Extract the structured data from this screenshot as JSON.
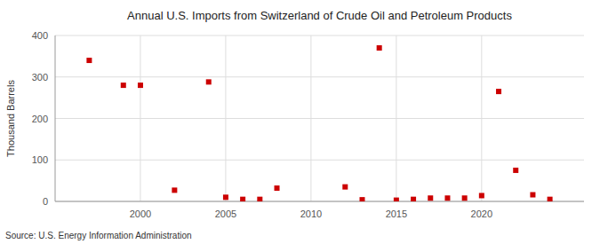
{
  "chart_data": {
    "type": "scatter",
    "title": "Annual U.S. Imports from Switzerland of Crude Oil and Petroleum Products",
    "ylabel": "Thousand Barrels",
    "source": "Source: U.S. Energy Information Administration",
    "x": [
      1997,
      1999,
      2000,
      2002,
      2004,
      2005,
      2006,
      2007,
      2008,
      2012,
      2013,
      2014,
      2015,
      2016,
      2017,
      2018,
      2019,
      2020,
      2021,
      2022,
      2023,
      2024
    ],
    "values": [
      340,
      280,
      280,
      27,
      288,
      10,
      5,
      5,
      32,
      35,
      4,
      370,
      3,
      5,
      8,
      8,
      8,
      14,
      265,
      75,
      16,
      5
    ],
    "color": "#cc0000",
    "marker": "square",
    "xlim": [
      1995,
      2026
    ],
    "ylim": [
      0,
      400
    ],
    "xticks": [
      2000,
      2005,
      2010,
      2015,
      2020
    ],
    "yticks": [
      0,
      100,
      200,
      300,
      400
    ],
    "grid": true
  }
}
